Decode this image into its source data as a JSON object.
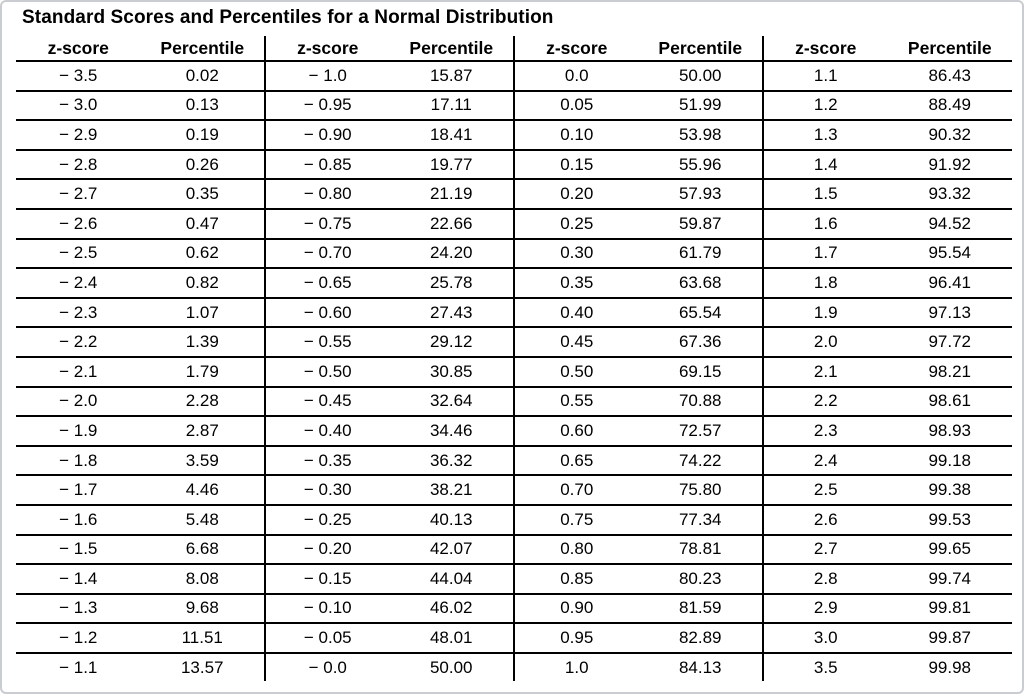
{
  "title": "Standard Scores and Percentiles for a Normal Distribution",
  "table": {
    "z_header": "z-score",
    "percentile_header": "Percentile",
    "groups": [
      {
        "rows": [
          [
            "− 3.5",
            "0.02"
          ],
          [
            "− 3.0",
            "0.13"
          ],
          [
            "− 2.9",
            "0.19"
          ],
          [
            "− 2.8",
            "0.26"
          ],
          [
            "− 2.7",
            "0.35"
          ],
          [
            "− 2.6",
            "0.47"
          ],
          [
            "− 2.5",
            "0.62"
          ],
          [
            "− 2.4",
            "0.82"
          ],
          [
            "− 2.3",
            "1.07"
          ],
          [
            "− 2.2",
            "1.39"
          ],
          [
            "− 2.1",
            "1.79"
          ],
          [
            "− 2.0",
            "2.28"
          ],
          [
            "− 1.9",
            "2.87"
          ],
          [
            "− 1.8",
            "3.59"
          ],
          [
            "− 1.7",
            "4.46"
          ],
          [
            "− 1.6",
            "5.48"
          ],
          [
            "− 1.5",
            "6.68"
          ],
          [
            "− 1.4",
            "8.08"
          ],
          [
            "− 1.3",
            "9.68"
          ],
          [
            "− 1.2",
            "11.51"
          ],
          [
            "− 1.1",
            "13.57"
          ]
        ]
      },
      {
        "rows": [
          [
            "− 1.0",
            "15.87"
          ],
          [
            "− 0.95",
            "17.11"
          ],
          [
            "− 0.90",
            "18.41"
          ],
          [
            "− 0.85",
            "19.77"
          ],
          [
            "− 0.80",
            "21.19"
          ],
          [
            "− 0.75",
            "22.66"
          ],
          [
            "− 0.70",
            "24.20"
          ],
          [
            "− 0.65",
            "25.78"
          ],
          [
            "− 0.60",
            "27.43"
          ],
          [
            "− 0.55",
            "29.12"
          ],
          [
            "− 0.50",
            "30.85"
          ],
          [
            "− 0.45",
            "32.64"
          ],
          [
            "− 0.40",
            "34.46"
          ],
          [
            "− 0.35",
            "36.32"
          ],
          [
            "− 0.30",
            "38.21"
          ],
          [
            "− 0.25",
            "40.13"
          ],
          [
            "− 0.20",
            "42.07"
          ],
          [
            "− 0.15",
            "44.04"
          ],
          [
            "− 0.10",
            "46.02"
          ],
          [
            "− 0.05",
            "48.01"
          ],
          [
            "− 0.0",
            "50.00"
          ]
        ]
      },
      {
        "rows": [
          [
            "0.0",
            "50.00"
          ],
          [
            "0.05",
            "51.99"
          ],
          [
            "0.10",
            "53.98"
          ],
          [
            "0.15",
            "55.96"
          ],
          [
            "0.20",
            "57.93"
          ],
          [
            "0.25",
            "59.87"
          ],
          [
            "0.30",
            "61.79"
          ],
          [
            "0.35",
            "63.68"
          ],
          [
            "0.40",
            "65.54"
          ],
          [
            "0.45",
            "67.36"
          ],
          [
            "0.50",
            "69.15"
          ],
          [
            "0.55",
            "70.88"
          ],
          [
            "0.60",
            "72.57"
          ],
          [
            "0.65",
            "74.22"
          ],
          [
            "0.70",
            "75.80"
          ],
          [
            "0.75",
            "77.34"
          ],
          [
            "0.80",
            "78.81"
          ],
          [
            "0.85",
            "80.23"
          ],
          [
            "0.90",
            "81.59"
          ],
          [
            "0.95",
            "82.89"
          ],
          [
            "1.0",
            "84.13"
          ]
        ]
      },
      {
        "rows": [
          [
            "1.1",
            "86.43"
          ],
          [
            "1.2",
            "88.49"
          ],
          [
            "1.3",
            "90.32"
          ],
          [
            "1.4",
            "91.92"
          ],
          [
            "1.5",
            "93.32"
          ],
          [
            "1.6",
            "94.52"
          ],
          [
            "1.7",
            "95.54"
          ],
          [
            "1.8",
            "96.41"
          ],
          [
            "1.9",
            "97.13"
          ],
          [
            "2.0",
            "97.72"
          ],
          [
            "2.1",
            "98.21"
          ],
          [
            "2.2",
            "98.61"
          ],
          [
            "2.3",
            "98.93"
          ],
          [
            "2.4",
            "99.18"
          ],
          [
            "2.5",
            "99.38"
          ],
          [
            "2.6",
            "99.53"
          ],
          [
            "2.7",
            "99.65"
          ],
          [
            "2.8",
            "99.74"
          ],
          [
            "2.9",
            "99.81"
          ],
          [
            "3.0",
            "99.87"
          ],
          [
            "3.5",
            "99.98"
          ]
        ]
      }
    ]
  }
}
